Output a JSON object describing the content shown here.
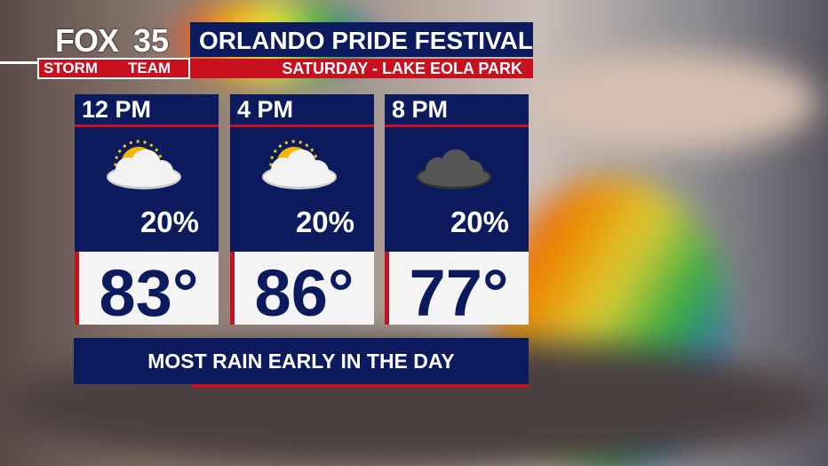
{
  "logo": {
    "station": "FOX",
    "channel": "35",
    "team_left": "STORM",
    "team_right": "TEAM"
  },
  "header": {
    "title": "ORLANDO PRIDE FESTIVAL",
    "subtitle": "SATURDAY - LAKE EOLA PARK"
  },
  "periods": [
    {
      "time": "12 PM",
      "rain_chance": "20%",
      "temperature": "83°"
    },
    {
      "time": "4 PM",
      "rain_chance": "20%",
      "temperature": "86°"
    },
    {
      "time": "8 PM",
      "rain_chance": "20%",
      "temperature": "77°"
    }
  ],
  "footer": "MOST RAIN EARLY IN THE DAY"
}
